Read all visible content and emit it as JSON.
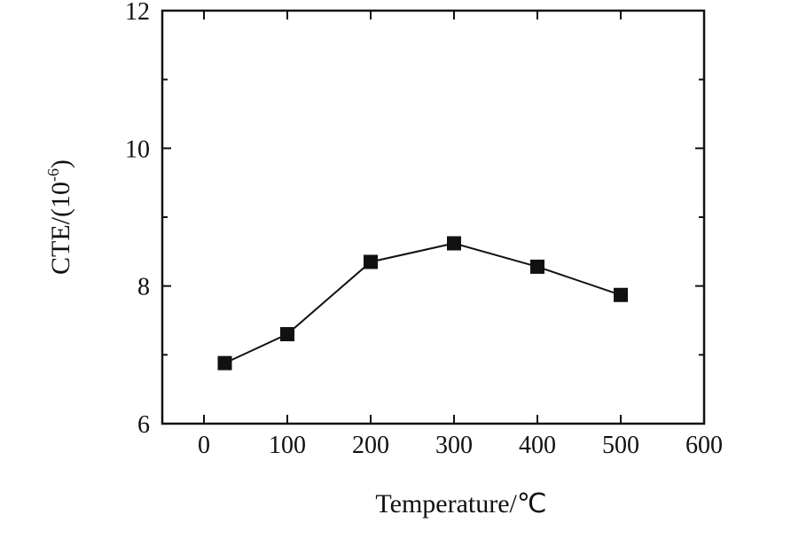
{
  "chart_data": {
    "type": "line",
    "title": "",
    "xlabel": "Temperature/℃",
    "ylabel_base": "CTE/(10",
    "ylabel_exp": "-6",
    "ylabel_close": ")",
    "xlim": [
      -50,
      600
    ],
    "ylim": [
      6,
      12
    ],
    "xticks": [
      0,
      100,
      200,
      300,
      400,
      500,
      600
    ],
    "xtick_labels": [
      "0",
      "100",
      "200",
      "300",
      "400",
      "500",
      "600"
    ],
    "yticks": [
      6,
      8,
      10,
      12
    ],
    "ytick_labels": [
      "6",
      "8",
      "10",
      "12"
    ],
    "grid": false,
    "marker": "square",
    "series": [
      {
        "x": [
          25,
          100,
          200,
          300,
          400,
          500
        ],
        "values": [
          6.88,
          7.3,
          8.35,
          8.62,
          8.28,
          7.87
        ]
      }
    ],
    "colors": {
      "line": "#111111",
      "marker": "#111111",
      "axis": "#111111"
    }
  }
}
